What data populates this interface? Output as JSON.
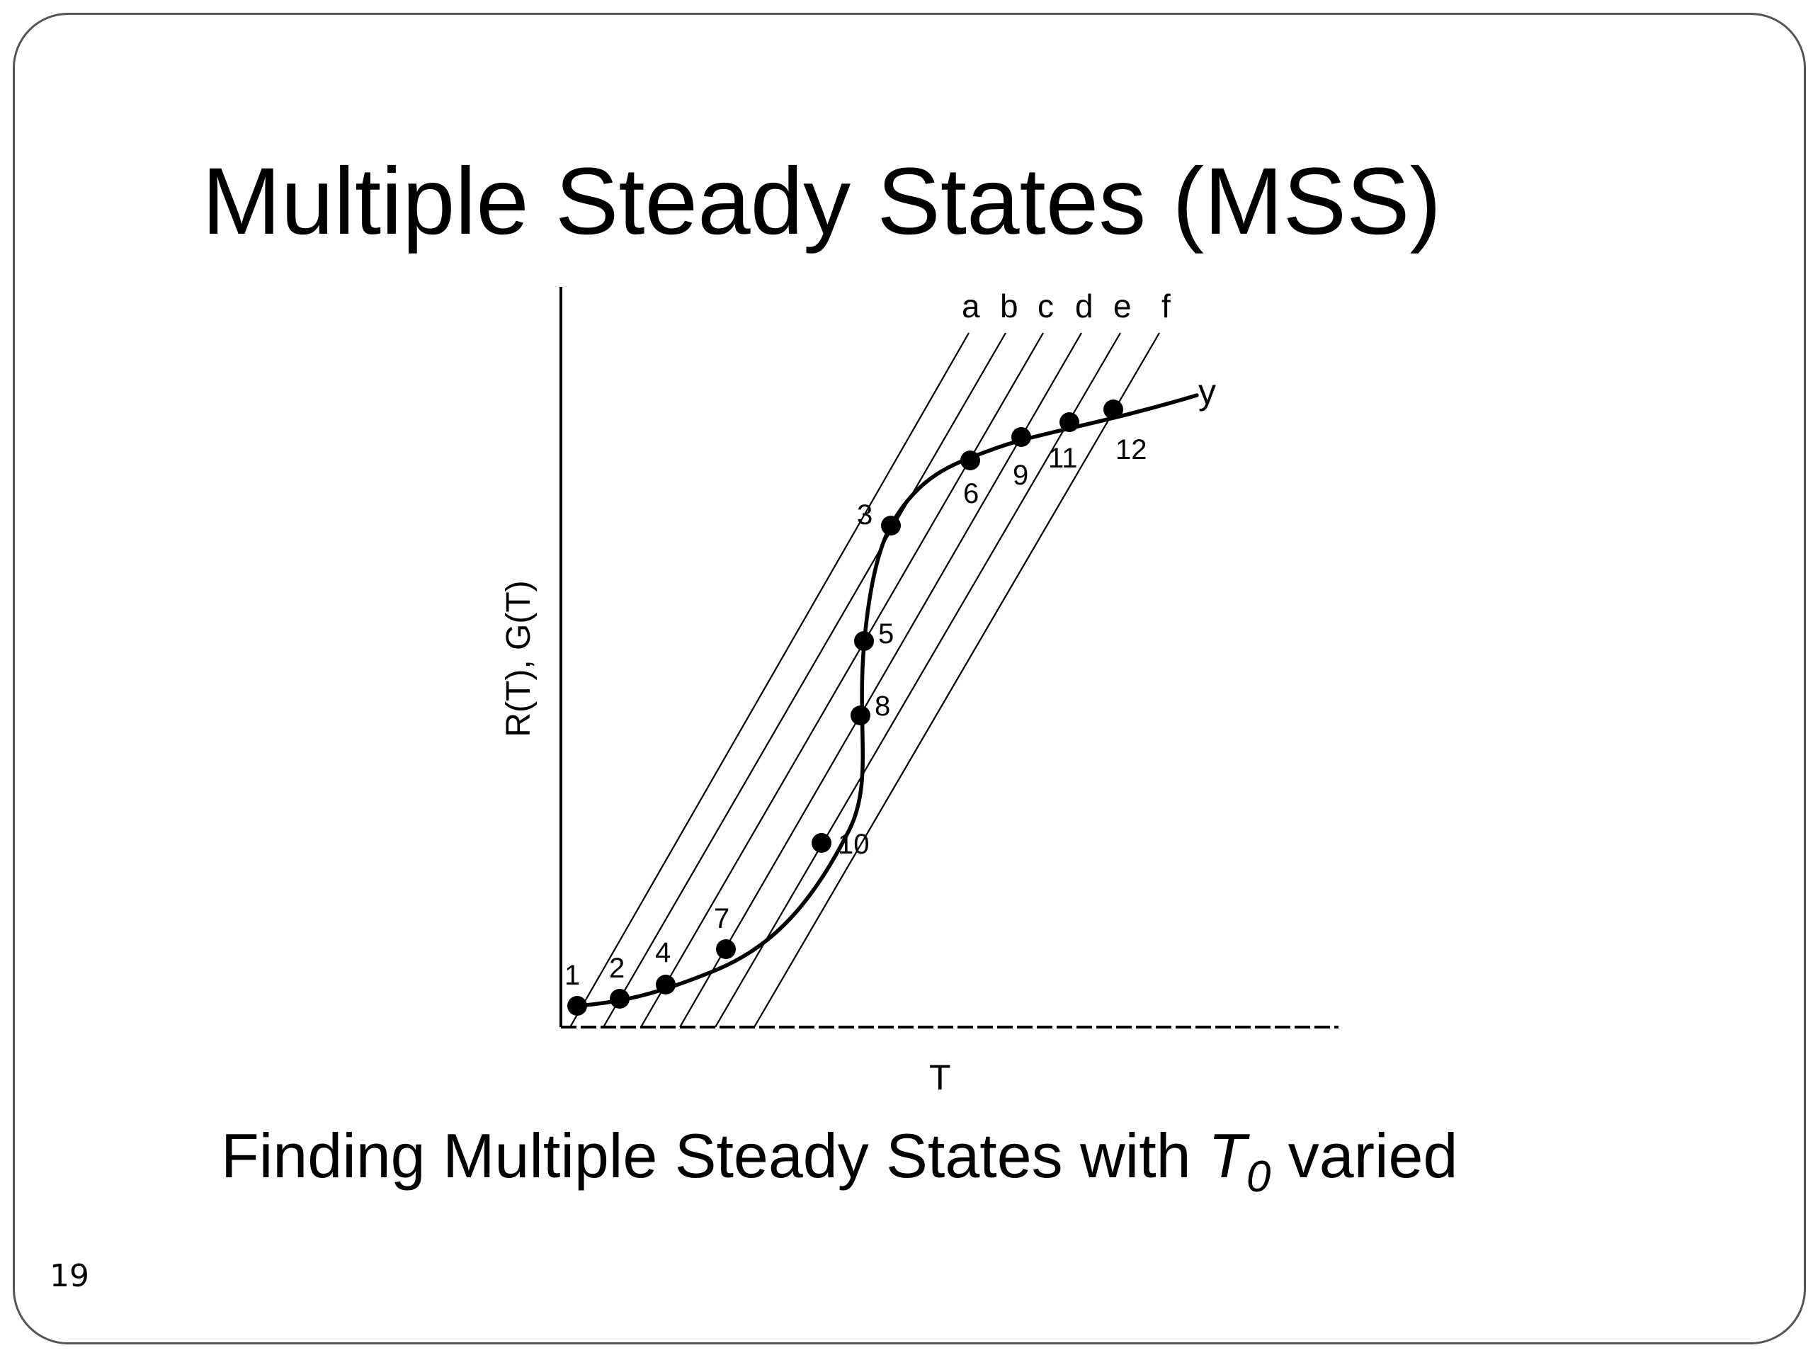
{
  "slide": {
    "title": "Multiple Steady States (MSS)",
    "caption_prefix": "Finding Multiple Steady States with",
    "caption_var": "T",
    "caption_sub": "0",
    "caption_suffix": "varied",
    "page_number": "19"
  },
  "diagram": {
    "y_axis_label": "R(T), G(T)",
    "x_axis_label": "T",
    "curve_label": "y",
    "line_labels": [
      "a",
      "b",
      "c",
      "d",
      "e",
      "f"
    ],
    "point_labels": [
      "1",
      "2",
      "3",
      "4",
      "5",
      "6",
      "7",
      "8",
      "9",
      "10",
      "11",
      "12"
    ]
  },
  "colors": {
    "ink": "#000000",
    "frame": "#555555"
  }
}
